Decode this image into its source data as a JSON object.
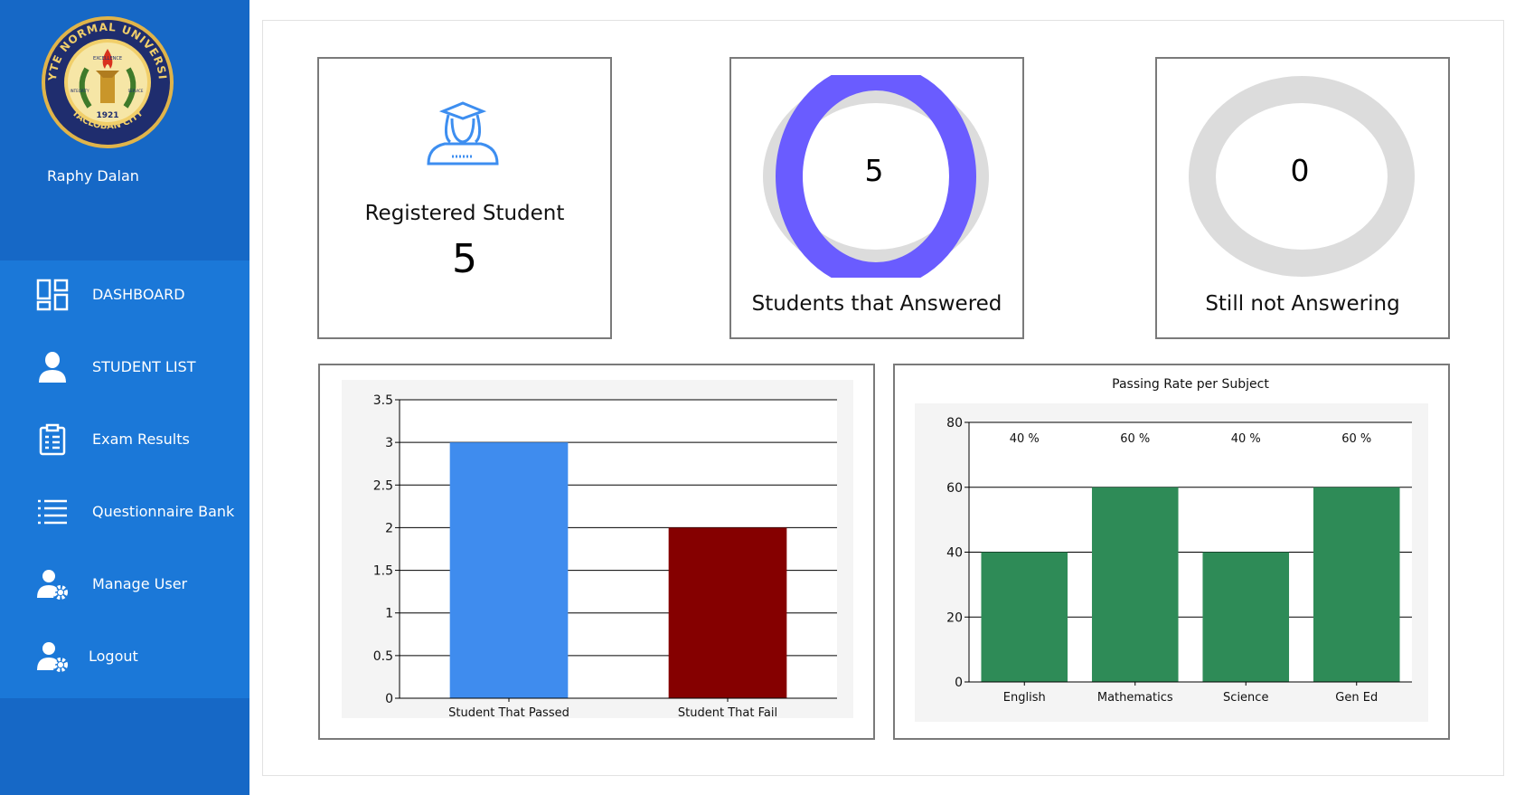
{
  "user": {
    "name": "Raphy Dalan"
  },
  "logo": {
    "text_top": "LEYTE NORMAL UNIVERSITY",
    "text_bottom": "TACLOBAN CITY",
    "year": "1921",
    "motto": [
      "EXCELLENCE",
      "INTEGRITY",
      "SERVICE"
    ]
  },
  "menu": [
    {
      "label": "DASHBOARD",
      "icon": "dashboard-grid-icon"
    },
    {
      "label": "STUDENT LIST",
      "icon": "person-icon"
    },
    {
      "label": "Exam Results",
      "icon": "clipboard-icon"
    },
    {
      "label": "Questionnaire Bank",
      "icon": "list-icon"
    },
    {
      "label": "Manage User",
      "icon": "user-gear-icon"
    },
    {
      "label": "Logout",
      "icon": "user-gear-icon"
    }
  ],
  "cards": {
    "registered": {
      "label": "Registered Student",
      "value": "5",
      "icon": "student-graduate-icon"
    },
    "answered": {
      "label": "Students that Answered",
      "value": "5",
      "ring_fraction": 1.0,
      "color": "#6a5cff"
    },
    "not_answering": {
      "label": "Still not Answering",
      "value": "0",
      "ring_fraction": 0.0,
      "color": "#dcdcdc"
    }
  },
  "chart_data": [
    {
      "type": "bar",
      "title": "",
      "categories": [
        "Student That Passed",
        "Student That Fail"
      ],
      "values": [
        3,
        2
      ],
      "colors": [
        "#3f8cee",
        "#850000"
      ],
      "ylim": [
        0,
        3.5
      ],
      "yticks": [
        "0",
        "0.5",
        "1",
        "1.5",
        "2",
        "2.5",
        "3",
        "3.5"
      ],
      "grid": true
    },
    {
      "type": "bar",
      "title": "Passing Rate per Subject",
      "categories": [
        "English",
        "Mathematics",
        "Science",
        "Gen Ed"
      ],
      "values": [
        40,
        60,
        40,
        60
      ],
      "data_labels": [
        "40 %",
        "60 %",
        "40 %",
        "60 %"
      ],
      "colors": [
        "#2e8b57"
      ],
      "ylim": [
        0,
        80
      ],
      "yticks": [
        "0",
        "20",
        "40",
        "60",
        "80"
      ],
      "grid": true
    }
  ]
}
